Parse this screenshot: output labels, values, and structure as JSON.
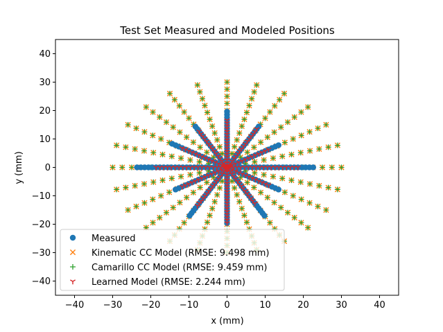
{
  "chart_data": {
    "type": "scatter",
    "title": "Test Set Measured and Modeled Positions",
    "xlabel": "x (mm)",
    "ylabel": "y (mm)",
    "xlim": [
      -45,
      45
    ],
    "ylim": [
      -45,
      45
    ],
    "xticks": [
      -40,
      -30,
      -20,
      -10,
      0,
      10,
      20,
      30,
      40
    ],
    "yticks": [
      -40,
      -30,
      -20,
      -10,
      0,
      10,
      20,
      30,
      40
    ],
    "tick_labels_x": [
      "−40",
      "−30",
      "−20",
      "−10",
      "0",
      "10",
      "20",
      "30",
      "40"
    ],
    "tick_labels_y": [
      "−40",
      "−30",
      "−20",
      "−10",
      "0",
      "10",
      "20",
      "30",
      "40"
    ],
    "grid": false,
    "legend_position": "lower-left",
    "series": [
      {
        "name": "Measured",
        "marker": "circle",
        "color": "#1f77b4",
        "rays": [
          {
            "angle": 0,
            "radius": 23
          },
          {
            "angle": 30,
            "radius": 16
          },
          {
            "angle": 60,
            "radius": 17
          },
          {
            "angle": 90,
            "radius": 20
          },
          {
            "angle": 120,
            "radius": 17
          },
          {
            "angle": 150,
            "radius": 17
          },
          {
            "angle": 180,
            "radius": 24
          },
          {
            "angle": 210,
            "radius": 16
          },
          {
            "angle": 240,
            "radius": 20
          },
          {
            "angle": 270,
            "radius": 20
          },
          {
            "angle": 300,
            "radius": 20
          },
          {
            "angle": 330,
            "radius": 16
          }
        ]
      },
      {
        "name": "Kinematic CC Model (RMSE: 9.498 mm)",
        "marker": "x",
        "color": "#ff7f0e",
        "ray_count": 24,
        "radius": 30.5
      },
      {
        "name": "Camarillo CC Model (RMSE: 9.459 mm)",
        "marker": "plus",
        "color": "#2ca02c",
        "ray_count": 24,
        "radius": 30.5
      },
      {
        "name": "Learned Model (RMSE: 2.244 mm)",
        "marker": "tri_down",
        "color": "#d62728",
        "rays": [
          {
            "angle": 0,
            "radius": 19
          },
          {
            "angle": 30,
            "radius": 13
          },
          {
            "angle": 60,
            "radius": 16
          },
          {
            "angle": 90,
            "radius": 17
          },
          {
            "angle": 120,
            "radius": 15
          },
          {
            "angle": 150,
            "radius": 14
          },
          {
            "angle": 180,
            "radius": 19
          },
          {
            "angle": 210,
            "radius": 14
          },
          {
            "angle": 240,
            "radius": 16
          },
          {
            "angle": 270,
            "radius": 20
          },
          {
            "angle": 300,
            "radius": 15
          },
          {
            "angle": 330,
            "radius": 13
          }
        ]
      }
    ]
  }
}
